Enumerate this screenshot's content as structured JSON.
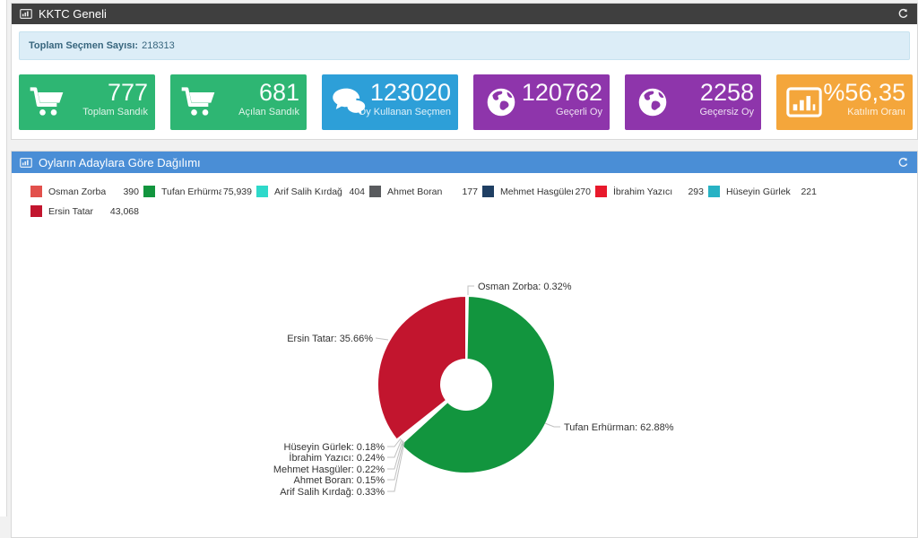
{
  "panel1": {
    "title": "KKTC Geneli",
    "header_icon": "chart",
    "refresh_icon": "refresh",
    "info": {
      "label": "Toplam Seçmen Sayısı:",
      "value": "218313"
    },
    "cards": [
      {
        "value": "777",
        "label": "Toplam Sandık",
        "color": "#2eb673",
        "icon": "cart"
      },
      {
        "value": "681",
        "label": "Açılan Sandık",
        "color": "#2eb673",
        "icon": "cart"
      },
      {
        "value": "123020",
        "label": "Oy Kullanan Seçmen",
        "color": "#2d9fd8",
        "icon": "comments"
      },
      {
        "value": "120762",
        "label": "Geçerli Oy",
        "color": "#8e35ab",
        "icon": "globe"
      },
      {
        "value": "2258",
        "label": "Geçersiz Oy",
        "color": "#8e35ab",
        "icon": "globe"
      },
      {
        "value": "%56,35",
        "label": "Katılım Oranı",
        "color": "#f4a63b",
        "icon": "bar-chart"
      }
    ]
  },
  "panel2": {
    "title": "Oyların Adaylara Göre Dağılımı",
    "header_icon": "chart",
    "refresh_icon": "refresh"
  },
  "chart_data": {
    "type": "pie",
    "donut": true,
    "title": "Oyların Adaylara Göre Dağılımı",
    "legend_position": "top",
    "label_format": "{name}: {percent}%",
    "series": [
      {
        "name": "Osman Zorba",
        "value": 390,
        "display_value": "390",
        "percent": 0.32,
        "color": "#e2504c"
      },
      {
        "name": "Tufan Erhürman",
        "value": 75939,
        "display_value": "75,939",
        "percent": 62.88,
        "color": "#12953e"
      },
      {
        "name": "Arif Salih Kırdağ",
        "value": 404,
        "display_value": "404",
        "percent": 0.33,
        "color": "#2ed9ca"
      },
      {
        "name": "Ahmet Boran",
        "value": 177,
        "display_value": "177",
        "percent": 0.15,
        "color": "#595b5e"
      },
      {
        "name": "Mehmet Hasgüler",
        "value": 270,
        "display_value": "270",
        "percent": 0.22,
        "color": "#1f3f63"
      },
      {
        "name": "İbrahim Yazıcı",
        "value": 293,
        "display_value": "293",
        "percent": 0.24,
        "color": "#e8192c"
      },
      {
        "name": "Hüseyin Gürlek",
        "value": 221,
        "display_value": "221",
        "percent": 0.18,
        "color": "#27b2c4"
      },
      {
        "name": "Ersin Tatar",
        "value": 43068,
        "display_value": "43,068",
        "percent": 35.66,
        "color": "#c2152e"
      }
    ]
  }
}
